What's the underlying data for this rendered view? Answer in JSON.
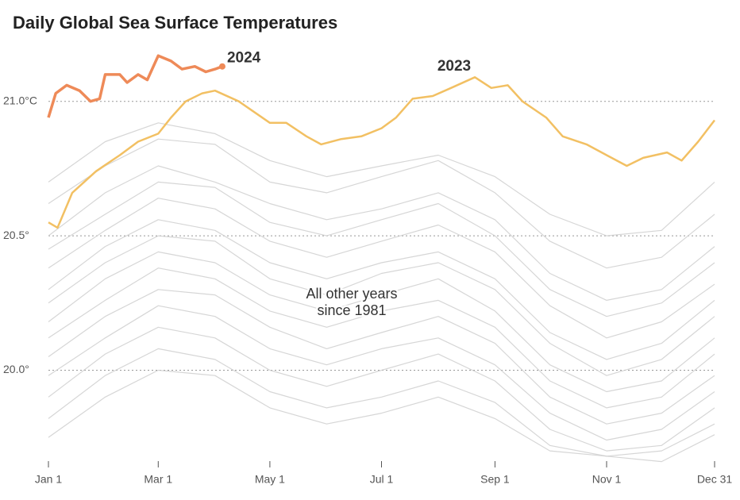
{
  "chart_data": {
    "type": "line",
    "title": "Daily Global Sea Surface Temperatures",
    "other_years_label": [
      "All other years",
      "since 1981"
    ],
    "x": [
      1,
      32,
      61,
      92,
      122,
      153,
      183,
      214,
      245,
      275,
      306,
      336,
      365
    ],
    "xlim": [
      1,
      365
    ],
    "xticks": [
      {
        "value": 1,
        "label": "Jan 1"
      },
      {
        "value": 61,
        "label": "Mar 1"
      },
      {
        "value": 122,
        "label": "May 1"
      },
      {
        "value": 183,
        "label": "Jul 1"
      },
      {
        "value": 245,
        "label": "Sep 1"
      },
      {
        "value": 306,
        "label": "Nov 1"
      },
      {
        "value": 365,
        "label": "Dec 31"
      }
    ],
    "ylim": [
      19.65,
      21.2
    ],
    "yticks": [
      {
        "value": 21,
        "label": "21.0°C"
      },
      {
        "value": 20.5,
        "label": "20.5°"
      },
      {
        "value": 20,
        "label": "20.0°"
      }
    ],
    "grid": true,
    "series": [
      {
        "color": "#cccccc",
        "values": [
          20.7,
          20.85,
          20.92,
          20.88,
          20.78,
          20.72,
          20.76,
          20.8,
          20.72,
          20.58,
          20.5,
          20.52,
          20.7
        ]
      },
      {
        "color": "#cccccc",
        "values": [
          20.62,
          20.76,
          20.86,
          20.84,
          20.7,
          20.66,
          20.72,
          20.78,
          20.66,
          20.48,
          20.38,
          20.42,
          20.58
        ]
      },
      {
        "color": "#cccccc",
        "values": [
          20.5,
          20.66,
          20.76,
          20.7,
          20.62,
          20.56,
          20.6,
          20.66,
          20.56,
          20.36,
          20.26,
          20.3,
          20.46
        ]
      },
      {
        "color": "#cccccc",
        "values": [
          20.45,
          20.58,
          20.7,
          20.68,
          20.55,
          20.5,
          20.56,
          20.62,
          20.5,
          20.3,
          20.2,
          20.25,
          20.4
        ]
      },
      {
        "color": "#cccccc",
        "values": [
          20.38,
          20.52,
          20.64,
          20.6,
          20.48,
          20.42,
          20.48,
          20.54,
          20.44,
          20.24,
          20.12,
          20.18,
          20.32
        ]
      },
      {
        "color": "#cccccc",
        "values": [
          20.3,
          20.46,
          20.56,
          20.52,
          20.4,
          20.34,
          20.4,
          20.44,
          20.34,
          20.14,
          20.04,
          20.1,
          20.26
        ]
      },
      {
        "color": "#cccccc",
        "values": [
          20.25,
          20.4,
          20.5,
          20.48,
          20.34,
          20.28,
          20.36,
          20.4,
          20.3,
          20.1,
          19.98,
          20.04,
          20.2
        ]
      },
      {
        "color": "#cccccc",
        "values": [
          20.18,
          20.34,
          20.44,
          20.4,
          20.28,
          20.22,
          20.28,
          20.34,
          20.22,
          20.02,
          19.92,
          19.96,
          20.12
        ]
      },
      {
        "color": "#cccccc",
        "values": [
          20.12,
          20.26,
          20.38,
          20.34,
          20.22,
          20.16,
          20.22,
          20.26,
          20.16,
          19.96,
          19.86,
          19.9,
          20.06
        ]
      },
      {
        "color": "#cccccc",
        "values": [
          20.05,
          20.2,
          20.3,
          20.28,
          20.16,
          20.08,
          20.14,
          20.2,
          20.1,
          19.9,
          19.8,
          19.84,
          19.98
        ]
      },
      {
        "color": "#cccccc",
        "values": [
          19.98,
          20.12,
          20.24,
          20.2,
          20.08,
          20.02,
          20.08,
          20.12,
          20.02,
          19.84,
          19.74,
          19.78,
          19.92
        ]
      },
      {
        "color": "#cccccc",
        "values": [
          19.9,
          20.06,
          20.16,
          20.12,
          20.0,
          19.94,
          20.0,
          20.06,
          19.96,
          19.78,
          19.7,
          19.72,
          19.86
        ]
      },
      {
        "color": "#cccccc",
        "values": [
          19.82,
          19.98,
          20.08,
          20.04,
          19.92,
          19.86,
          19.9,
          19.96,
          19.88,
          19.72,
          19.68,
          19.7,
          19.8
        ]
      },
      {
        "color": "#cccccc",
        "values": [
          19.75,
          19.9,
          20.0,
          19.98,
          19.86,
          19.8,
          19.84,
          19.9,
          19.82,
          19.7,
          19.68,
          19.66,
          19.76
        ]
      },
      {
        "name": "2023",
        "color": "#f2c063",
        "x": [
          1,
          6,
          14,
          27,
          40,
          50,
          61,
          68,
          76,
          85,
          92,
          105,
          122,
          131,
          142,
          150,
          161,
          172,
          183,
          191,
          200,
          211,
          221,
          234,
          243,
          252,
          260,
          273,
          282,
          295,
          306,
          317,
          326,
          339,
          347,
          356,
          365
        ],
        "values": [
          20.55,
          20.53,
          20.66,
          20.74,
          20.8,
          20.85,
          20.88,
          20.94,
          21.0,
          21.03,
          21.04,
          21.0,
          20.92,
          20.92,
          20.87,
          20.84,
          20.86,
          20.87,
          20.9,
          20.94,
          21.01,
          21.02,
          21.05,
          21.09,
          21.05,
          21.06,
          21.0,
          20.94,
          20.87,
          20.84,
          20.8,
          20.76,
          20.79,
          20.81,
          20.78,
          20.85,
          20.93
        ]
      },
      {
        "name": "2024",
        "color": "#ee8a58",
        "x": [
          1,
          5,
          11,
          18,
          24,
          29,
          32,
          40,
          44,
          50,
          55,
          61,
          68,
          74,
          81,
          87,
          92,
          96
        ],
        "values": [
          20.94,
          21.03,
          21.06,
          21.04,
          21.0,
          21.01,
          21.1,
          21.1,
          21.07,
          21.1,
          21.08,
          21.17,
          21.15,
          21.12,
          21.13,
          21.11,
          21.12,
          21.13
        ]
      }
    ]
  }
}
